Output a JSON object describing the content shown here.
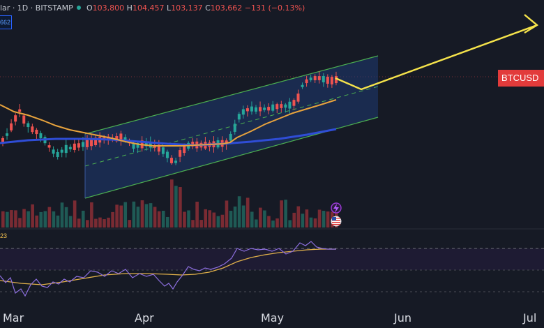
{
  "header": {
    "symbol_text": "lar · 1D · BITSTAMP",
    "open_key": "O",
    "open_val": "103,800",
    "high_key": "H",
    "high_val": "104,457",
    "low_key": "L",
    "low_val": "103,137",
    "close_key": "C",
    "close_val": "103,662",
    "change_val": "−131 (−0.13%)"
  },
  "price_badge": "662",
  "symbol_label": "BTCUSD",
  "rsi_value": "23",
  "x_axis": {
    "labels": [
      "Mar",
      "Apr",
      "May",
      "Jun",
      "Jul"
    ]
  },
  "colors": {
    "background": "#161a25",
    "up": "#26a69a",
    "down": "#ef5350",
    "channel_border": "#4caf50",
    "channel_fill": "#1e3a6e",
    "ma_short": "#e8a33d",
    "ma_long": "#2f4dd6",
    "projection": "#f5e34b",
    "rsi_line": "#8d6fe0",
    "rsi_ma": "#e0b04a"
  },
  "icons": [
    "lightning-icon",
    "us-flag-icon"
  ]
}
